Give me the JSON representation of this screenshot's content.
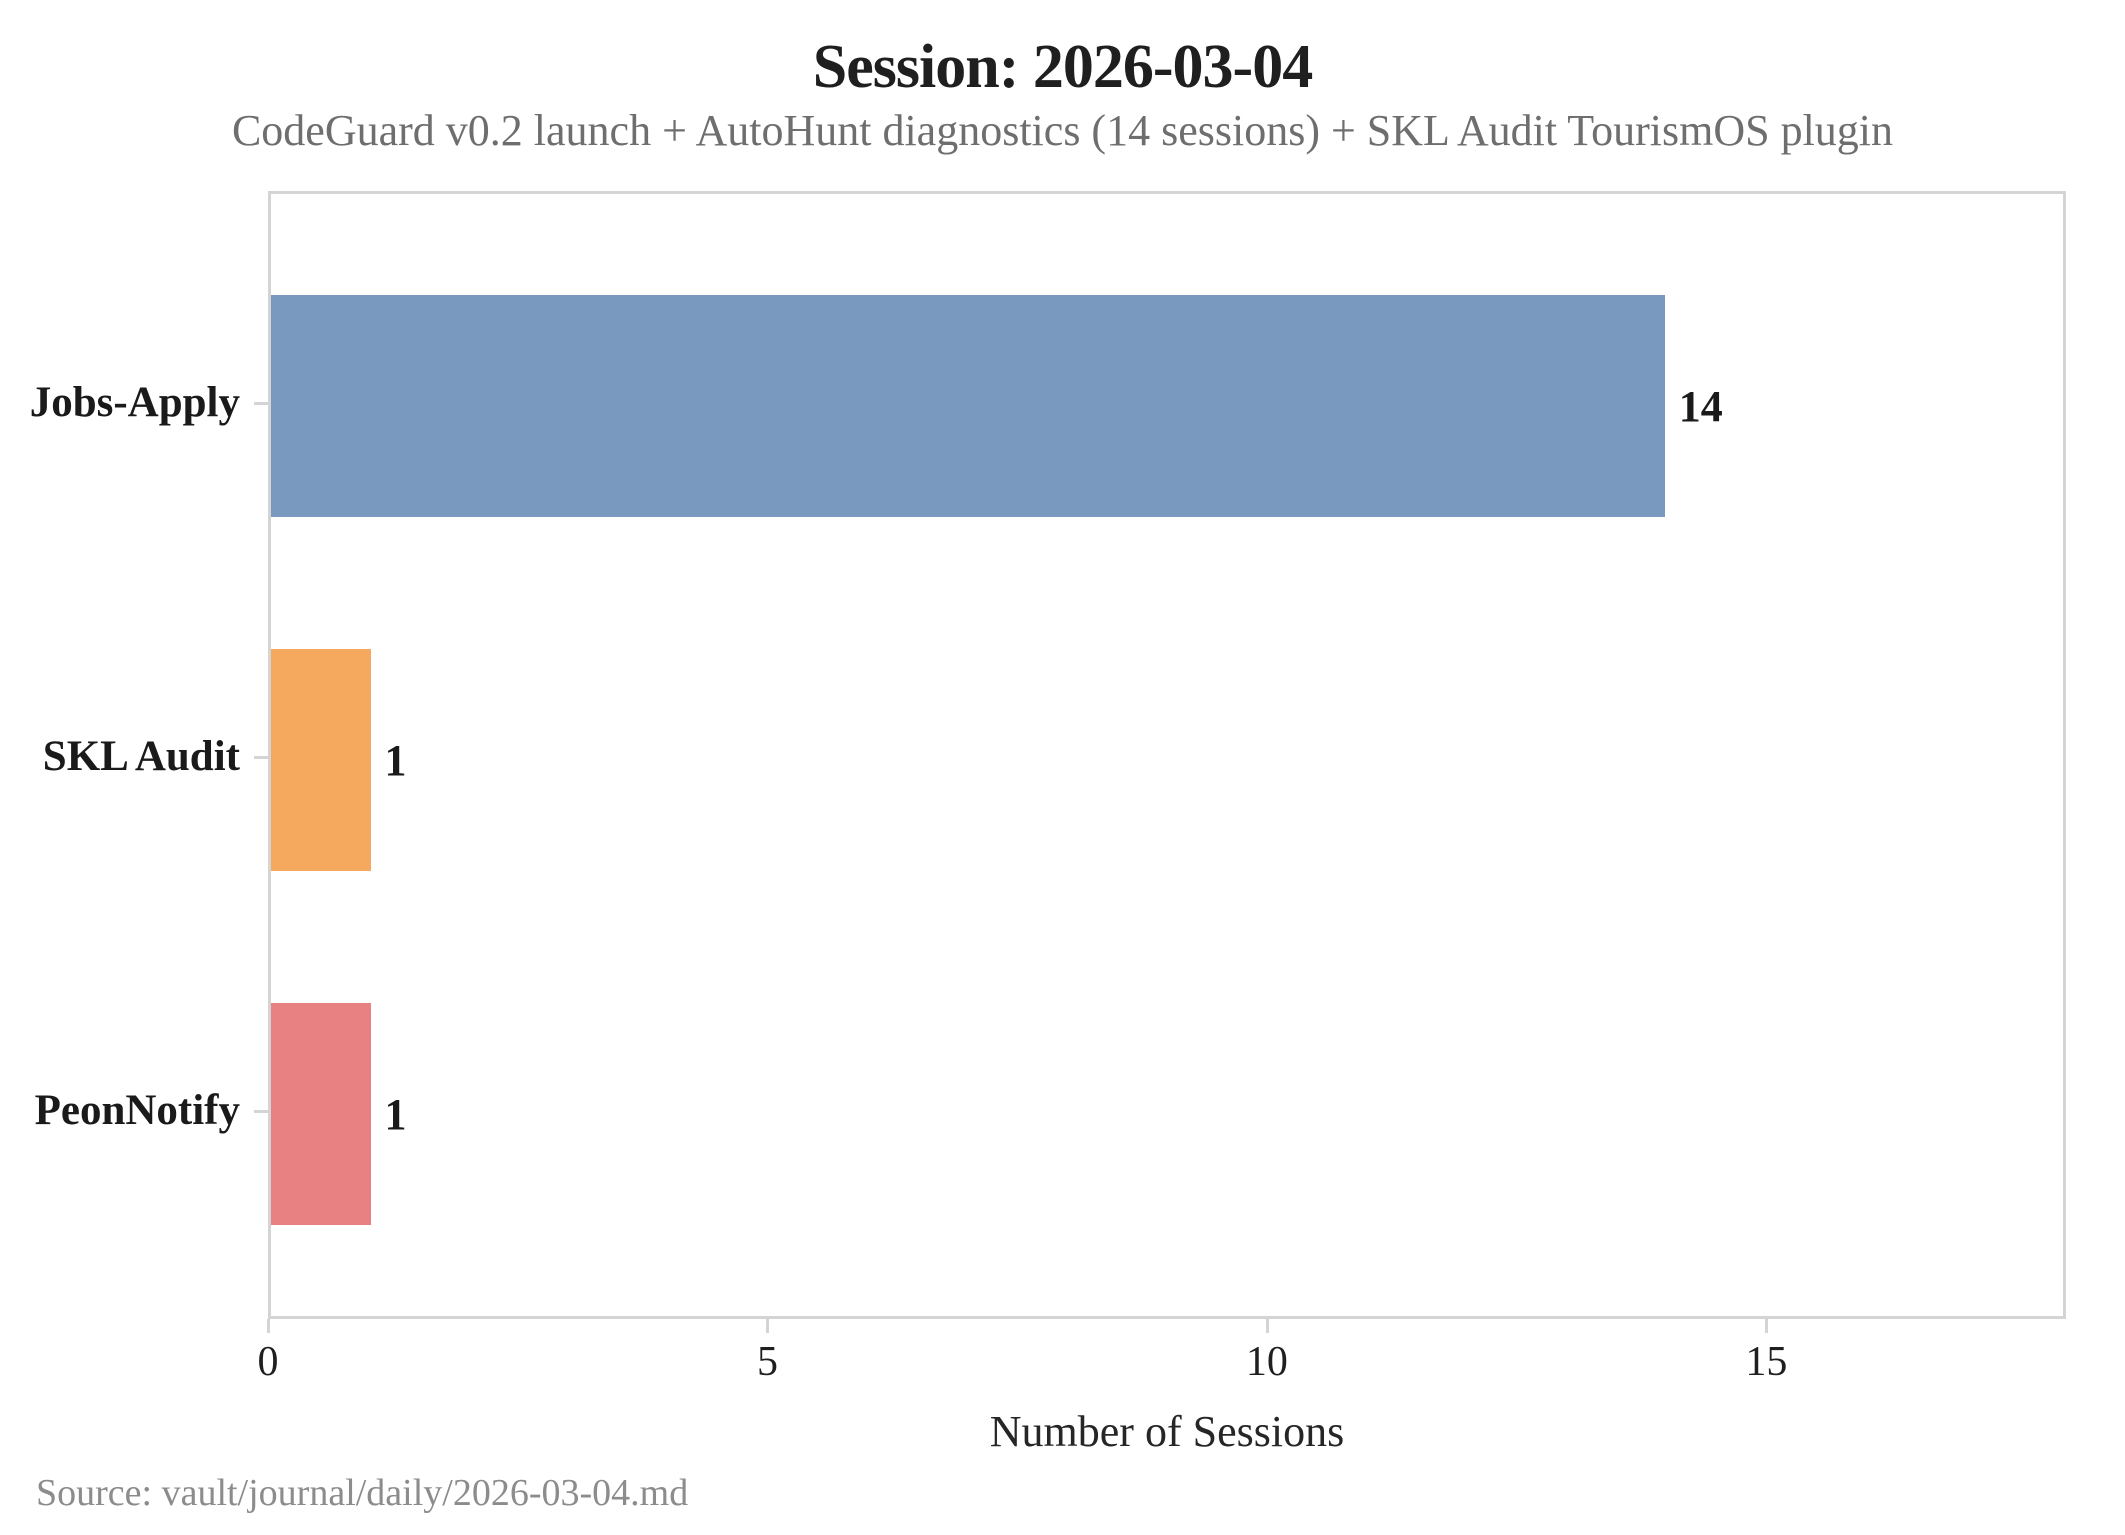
{
  "chart_data": {
    "type": "bar",
    "orientation": "horizontal",
    "title": "Session: 2026-03-04",
    "subtitle": "CodeGuard v0.2 launch + AutoHunt diagnostics (14 sessions) + SKL Audit TourismOS plugin",
    "categories": [
      "Jobs-Apply",
      "SKL Audit",
      "PeonNotify"
    ],
    "values": [
      14,
      1,
      1
    ],
    "value_labels": [
      "14",
      "1",
      "1"
    ],
    "bar_colors": [
      "#7999bf",
      "#f4a95e",
      "#e88181"
    ],
    "xlabel": "Number of Sessions",
    "xticks": [
      "0",
      "5",
      "10",
      "15"
    ],
    "xtick_values": [
      0,
      5,
      10,
      15
    ],
    "xlim": [
      0,
      18
    ],
    "grid": false,
    "legend": false,
    "source": "Source: vault/journal/daily/2026-03-04.md",
    "colors": {
      "title": "#1f1f1f",
      "subtitle": "#6e6e6e",
      "axis_spine": "#d4d4d4",
      "tick_label": "#1f1f1f",
      "source": "#8c8c8c",
      "background": "#ffffff"
    }
  }
}
